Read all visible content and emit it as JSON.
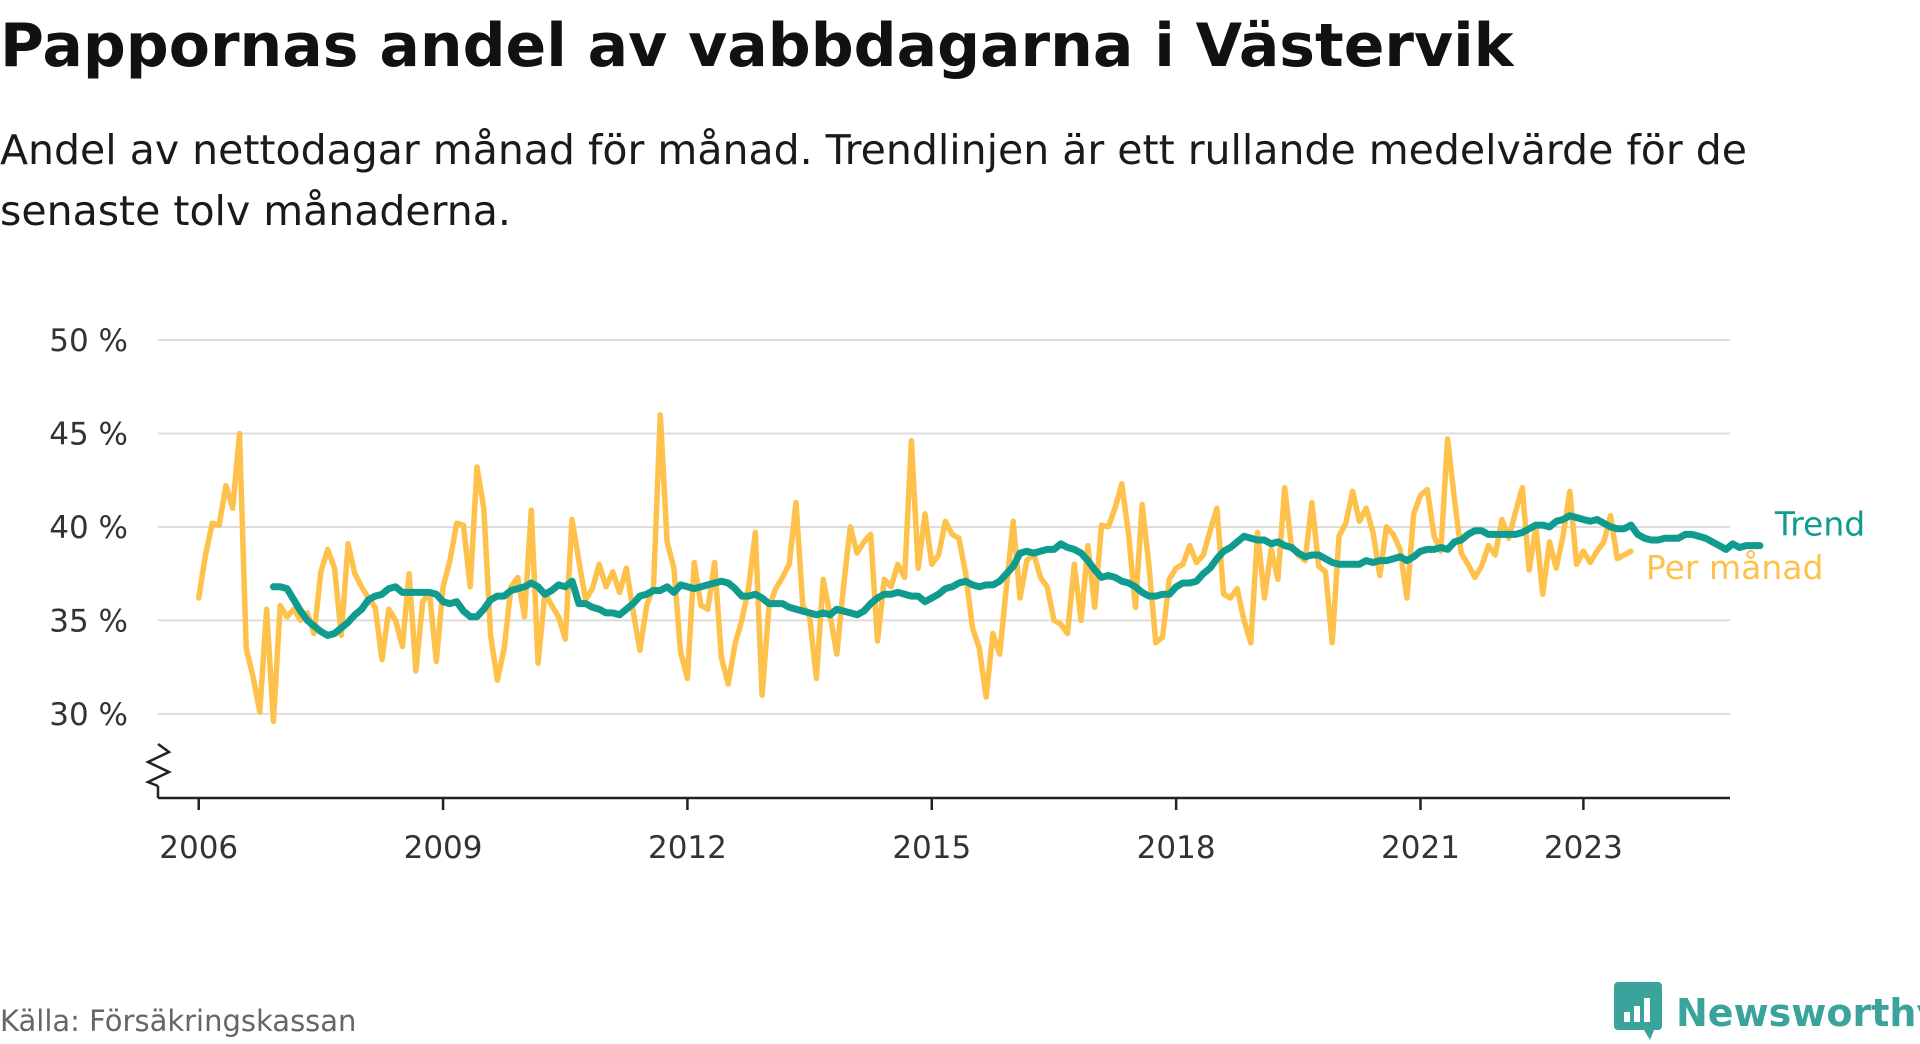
{
  "title": "Pappornas andel av vabbdagarna i Västervik",
  "subtitle": "Andel av nettodagar månad för månad. Trendlinjen är ett rullande medelvärde för de senaste tolv månaderna.",
  "source": "Källa: Försäkringskassan",
  "brand": {
    "name": "Newsworthy",
    "icon": "newsworthy-logo-icon"
  },
  "colors": {
    "monthly": "#fdc14c",
    "trend": "#0f9b8e",
    "grid": "#dddddd",
    "axis": "#222222",
    "tick_text": "#333333"
  },
  "chart_data": {
    "type": "line",
    "title": "Pappornas andel av vabbdagarna i Västervik",
    "xlabel": "",
    "ylabel": "",
    "ylim": [
      25.5,
      50
    ],
    "yticks": [
      30,
      35,
      40,
      45,
      50
    ],
    "ytick_labels": [
      "30 %",
      "35 %",
      "40 %",
      "45 %",
      "50 %"
    ],
    "xlim": [
      2005.5,
      2024.8
    ],
    "xticks": [
      2006,
      2009,
      2012,
      2015,
      2018,
      2021,
      2023
    ],
    "xtick_labels": [
      "2006",
      "2009",
      "2012",
      "2015",
      "2018",
      "2021",
      "2023"
    ],
    "y_axis_break": true,
    "grid": true,
    "legend": "direct labels at line ends (right)",
    "series": [
      {
        "name": "Per månad",
        "start": 2006.0,
        "step_months": 1,
        "values": [
          36.2,
          38.5,
          40.2,
          40.1,
          42.2,
          41.0,
          45.0,
          33.5,
          32.0,
          30.1,
          35.6,
          29.6,
          35.8,
          35.2,
          35.6,
          35.0,
          35.4,
          34.3,
          37.6,
          38.8,
          37.8,
          34.2,
          39.1,
          37.5,
          36.8,
          36.2,
          35.7,
          32.9,
          35.6,
          35.0,
          33.6,
          37.5,
          32.3,
          36.0,
          36.5,
          32.8,
          36.8,
          38.2,
          40.2,
          40.1,
          36.8,
          43.2,
          41.0,
          34.2,
          31.8,
          33.5,
          36.8,
          37.3,
          35.2,
          40.9,
          32.7,
          36.5,
          35.8,
          35.2,
          34.0,
          40.4,
          38.2,
          36.1,
          36.7,
          38.0,
          36.8,
          37.6,
          36.5,
          37.8,
          35.5,
          33.4,
          35.8,
          36.8,
          46.0,
          39.2,
          37.8,
          33.3,
          31.9,
          38.1,
          35.8,
          35.6,
          38.1,
          33.0,
          31.6,
          33.7,
          35.0,
          36.7,
          39.7,
          31.0,
          35.7,
          36.7,
          37.3,
          38.0,
          41.3,
          35.8,
          35.2,
          31.9,
          37.2,
          35.3,
          33.2,
          36.8,
          40.0,
          38.6,
          39.2,
          39.6,
          33.9,
          37.2,
          36.8,
          38.0,
          37.3,
          44.6,
          37.8,
          40.7,
          38.0,
          38.5,
          40.3,
          39.6,
          39.4,
          37.5,
          34.6,
          33.5,
          30.9,
          34.3,
          33.2,
          36.8,
          40.3,
          36.2,
          38.2,
          38.6,
          37.3,
          36.8,
          35.0,
          34.8,
          34.3,
          38.0,
          35.0,
          39.0,
          35.7,
          40.1,
          40.0,
          41.0,
          42.3,
          39.6,
          35.7,
          41.2,
          37.9,
          33.8,
          34.1,
          37.2,
          37.8,
          38.0,
          39.0,
          38.1,
          38.5,
          39.8,
          41.0,
          36.4,
          36.2,
          36.7,
          35.0,
          33.8,
          39.7,
          36.2,
          38.8,
          37.2,
          42.1,
          38.9,
          38.5,
          38.2,
          41.3,
          37.9,
          37.6,
          33.8,
          39.5,
          40.2,
          41.9,
          40.3,
          41.0,
          39.7,
          37.4,
          40.0,
          39.6,
          38.8,
          36.2,
          40.7,
          41.7,
          42.0,
          39.5,
          38.7,
          44.7,
          41.5,
          38.6,
          38.0,
          37.3,
          37.9,
          39.0,
          38.5,
          40.4,
          39.4,
          40.8,
          42.1,
          37.7,
          40.0,
          36.4,
          39.2,
          37.8,
          39.5,
          41.9,
          38.0,
          38.7,
          38.1,
          38.7,
          39.2,
          40.6,
          38.3,
          38.5,
          38.7
        ]
      },
      {
        "name": "Trend",
        "start": 2006.917,
        "step_months": 1,
        "values": [
          36.8,
          36.8,
          36.7,
          36.1,
          35.5,
          35.0,
          34.7,
          34.4,
          34.2,
          34.3,
          34.6,
          34.9,
          35.3,
          35.6,
          36.1,
          36.3,
          36.4,
          36.7,
          36.8,
          36.5,
          36.5,
          36.5,
          36.5,
          36.5,
          36.4,
          36.0,
          35.9,
          36.0,
          35.5,
          35.2,
          35.2,
          35.6,
          36.1,
          36.3,
          36.3,
          36.6,
          36.7,
          36.8,
          37.0,
          36.8,
          36.4,
          36.6,
          36.9,
          36.8,
          37.1,
          35.9,
          35.9,
          35.7,
          35.6,
          35.4,
          35.4,
          35.3,
          35.6,
          35.9,
          36.3,
          36.4,
          36.6,
          36.6,
          36.8,
          36.5,
          36.9,
          36.8,
          36.7,
          36.8,
          36.9,
          37.0,
          37.1,
          37.0,
          36.7,
          36.3,
          36.3,
          36.4,
          36.2,
          35.9,
          35.9,
          35.9,
          35.7,
          35.6,
          35.5,
          35.4,
          35.3,
          35.4,
          35.3,
          35.6,
          35.5,
          35.4,
          35.3,
          35.5,
          35.9,
          36.2,
          36.4,
          36.4,
          36.5,
          36.4,
          36.3,
          36.3,
          36.0,
          36.2,
          36.4,
          36.7,
          36.8,
          37.0,
          37.1,
          36.9,
          36.8,
          36.9,
          36.9,
          37.1,
          37.5,
          37.9,
          38.6,
          38.7,
          38.6,
          38.7,
          38.8,
          38.8,
          39.1,
          38.9,
          38.8,
          38.6,
          38.2,
          37.7,
          37.3,
          37.4,
          37.3,
          37.1,
          37.0,
          36.8,
          36.5,
          36.3,
          36.3,
          36.4,
          36.4,
          36.8,
          37.0,
          37.0,
          37.1,
          37.5,
          37.8,
          38.3,
          38.7,
          38.9,
          39.2,
          39.5,
          39.4,
          39.3,
          39.3,
          39.1,
          39.2,
          39.0,
          38.9,
          38.6,
          38.4,
          38.5,
          38.5,
          38.3,
          38.1,
          38.0,
          38.0,
          38.0,
          38.0,
          38.2,
          38.1,
          38.2,
          38.2,
          38.3,
          38.4,
          38.2,
          38.4,
          38.7,
          38.8,
          38.8,
          38.9,
          38.8,
          39.2,
          39.3,
          39.6,
          39.8,
          39.8,
          39.6,
          39.6,
          39.6,
          39.6,
          39.6,
          39.7,
          39.9,
          40.1,
          40.1,
          40.0,
          40.3,
          40.4,
          40.6,
          40.5,
          40.4,
          40.3,
          40.4,
          40.2,
          40.0,
          39.9,
          39.9,
          40.1,
          39.6,
          39.4,
          39.3,
          39.3,
          39.4,
          39.4,
          39.4,
          39.6,
          39.6,
          39.5,
          39.4,
          39.2,
          39.0,
          38.8,
          39.1,
          38.9,
          39.0,
          39.0,
          39.0
        ]
      }
    ]
  }
}
